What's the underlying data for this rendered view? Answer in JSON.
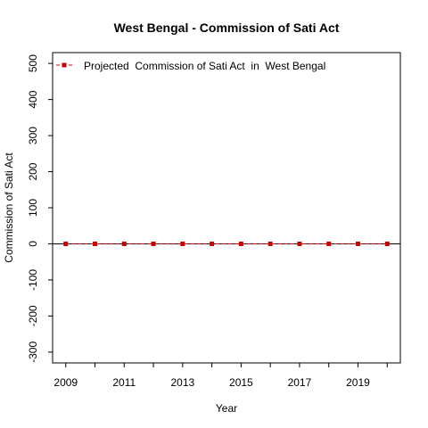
{
  "chart_data": {
    "type": "line",
    "title": "West Bengal  -  Commission of Sati Act",
    "xlabel": "Year",
    "ylabel": "Commission of Sati Act",
    "x": [
      2009,
      2010,
      2011,
      2012,
      2013,
      2014,
      2015,
      2016,
      2017,
      2018,
      2019,
      2020
    ],
    "series": [
      {
        "name": "Projected  Commission of Sati Act  in  West Bengal",
        "values": [
          0,
          0,
          0,
          0,
          0,
          0,
          0,
          0,
          0,
          0,
          0,
          0
        ],
        "color": "#cc0000",
        "line_style": "dashed",
        "marker": "square"
      }
    ],
    "xlim": [
      2008.55,
      2020.45
    ],
    "ylim": [
      -330,
      530
    ],
    "x_ticks": [
      2009,
      2010,
      2011,
      2012,
      2013,
      2014,
      2015,
      2016,
      2017,
      2018,
      2019,
      2020
    ],
    "x_tick_labels": [
      "2009",
      "2011",
      "2013",
      "2015",
      "2017",
      "2019"
    ],
    "y_ticks": [
      -300,
      -200,
      -100,
      0,
      100,
      200,
      300,
      400,
      500
    ],
    "y_tick_labels": [
      "-300",
      "-200",
      "-100",
      "0",
      "100",
      "200",
      "300",
      "400",
      "500"
    ],
    "reference_line_y": 0,
    "legend_placement": "top-left",
    "grid": false
  }
}
